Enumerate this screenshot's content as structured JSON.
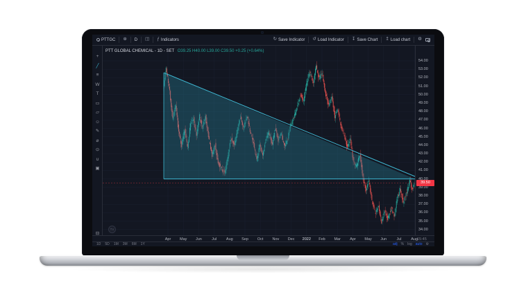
{
  "laptop": {
    "parts": [
      "screen-bezel",
      "webcam",
      "base-deck",
      "lid-notch"
    ]
  },
  "app": {
    "topbar": {
      "symbol": "PTTGC",
      "interval": "D",
      "indicators_label": "Indicators",
      "indicators_fx": "ƒ",
      "compare_glyph": "⊕",
      "chart_type_glyph": "◫",
      "save_indicator": "Save Indicator",
      "load_indicator": "Load Indicator",
      "save_chart": "Save Chart",
      "load_chart": "Load chart",
      "save_indicator_glyph": "↻",
      "load_indicator_glyph": "↺",
      "save_chart_glyph": "↧",
      "load_chart_glyph": "↥",
      "settings_glyph": "⚙"
    },
    "left_toolbar": [
      {
        "name": "cursor-crosshair-tool",
        "glyph": "+",
        "active": false
      },
      {
        "name": "trend-line-tool",
        "glyph": "╱",
        "active": true
      },
      {
        "name": "fib-retracement-tool",
        "glyph": "≡",
        "active": false
      },
      {
        "name": "xabcd-pattern-tool",
        "glyph": "W",
        "active": false
      },
      {
        "name": "text-tool",
        "glyph": "T",
        "active": false
      },
      {
        "name": "rectangle-tool",
        "glyph": "▭",
        "active": false
      },
      {
        "name": "callout-tool",
        "glyph": "▱",
        "active": false
      },
      {
        "name": "icons-tool",
        "glyph": "☺",
        "active": false
      },
      {
        "name": "brush-tool",
        "glyph": "✎",
        "active": false
      },
      {
        "name": "measure-tool",
        "glyph": "⌀",
        "active": false
      },
      {
        "name": "zoom-in-tool",
        "glyph": "⊙",
        "active": false
      },
      {
        "name": "magnet-tool",
        "glyph": "∪",
        "active": false
      },
      {
        "name": "lock-all-tool",
        "glyph": "▣",
        "active": false
      }
    ],
    "remove_drawings": {
      "name": "remove-drawings-button",
      "glyph": "⊟"
    },
    "legend": {
      "title": "PTT GLOBAL CHEMICAL - 1D - SET",
      "ohlc": "O39.25  H40.00  L39.00  C39.50  +0.25 (+0.64%)"
    },
    "price_axis": {
      "ticks": [
        "54.00",
        "53.00",
        "52.00",
        "51.00",
        "50.00",
        "49.00",
        "48.00",
        "47.00",
        "46.00",
        "45.00",
        "44.00",
        "43.00",
        "42.00",
        "41.00",
        "40.00",
        "39.00",
        "38.00",
        "37.00",
        "36.00",
        "35.00",
        "34.00"
      ],
      "last_price_tag": "39.50"
    },
    "time_axis": {
      "labels": [
        "Apr",
        "May",
        "Jun",
        "Jul",
        "Aug",
        "Sep",
        "Oct",
        "Nov",
        "Dec",
        "2022",
        "Feb",
        "Mar",
        "Apr",
        "May",
        "Jun",
        "Jul",
        "Aug"
      ],
      "corner_time": "15:45"
    },
    "bottom_bar": {
      "ranges": [
        "1D",
        "5D",
        "1M",
        "3M",
        "6M",
        "1Y"
      ],
      "scale_buttons": [
        {
          "label": "adj",
          "active": true
        },
        {
          "label": "%",
          "active": false
        },
        {
          "label": "log",
          "active": false
        },
        {
          "label": "auto",
          "active": true
        }
      ],
      "settings_glyph": "⚙"
    },
    "watermark": "TV"
  },
  "chart_data": {
    "type": "candlestick",
    "title": "PTT GLOBAL CHEMICAL - 1D - SET",
    "symbol": "PTTGC",
    "exchange": "SET",
    "interval": "1D",
    "visible_range": {
      "from": "Apr 2021",
      "to": "Aug 2022"
    },
    "x_labels": [
      "Apr",
      "May",
      "Jun",
      "Jul",
      "Aug",
      "Sep",
      "Oct",
      "Nov",
      "Dec",
      "2022",
      "Feb",
      "Mar",
      "Apr",
      "May",
      "Jun",
      "Jul",
      "Aug"
    ],
    "y_ticks": [
      54,
      53,
      52,
      51,
      50,
      49,
      48,
      47,
      46,
      45,
      44,
      43,
      42,
      41,
      40,
      39,
      38,
      37,
      36,
      35,
      34
    ],
    "y_range": [
      33.5,
      55.0
    ],
    "last_bar": {
      "open": 39.25,
      "high": 40.0,
      "low": 39.0,
      "close": 39.5,
      "change": "+0.25 (+0.64%)"
    },
    "last_price": 39.5,
    "num_bars": 339,
    "price_waypoints": [
      [
        0,
        51.0
      ],
      [
        3,
        53.2
      ],
      [
        8,
        50.3
      ],
      [
        12,
        47.2
      ],
      [
        16,
        48.6
      ],
      [
        20,
        45.6
      ],
      [
        24,
        44.0
      ],
      [
        28,
        45.8
      ],
      [
        32,
        43.8
      ],
      [
        36,
        46.6
      ],
      [
        40,
        47.2
      ],
      [
        44,
        45.1
      ],
      [
        48,
        47.5
      ],
      [
        52,
        46.0
      ],
      [
        56,
        47.4
      ],
      [
        60,
        44.9
      ],
      [
        65,
        42.8
      ],
      [
        69,
        44.1
      ],
      [
        73,
        41.9
      ],
      [
        78,
        41.2
      ],
      [
        82,
        40.7
      ],
      [
        86,
        42.6
      ],
      [
        90,
        44.8
      ],
      [
        95,
        44.1
      ],
      [
        99,
        45.7
      ],
      [
        103,
        47.3
      ],
      [
        108,
        46.1
      ],
      [
        112,
        47.5
      ],
      [
        116,
        45.7
      ],
      [
        120,
        44.5
      ],
      [
        125,
        42.3
      ],
      [
        129,
        43.9
      ],
      [
        133,
        42.7
      ],
      [
        137,
        44.5
      ],
      [
        141,
        45.6
      ],
      [
        146,
        44.2
      ],
      [
        150,
        46.0
      ],
      [
        154,
        44.6
      ],
      [
        158,
        45.3
      ],
      [
        163,
        43.7
      ],
      [
        167,
        44.9
      ],
      [
        171,
        46.4
      ],
      [
        176,
        47.5
      ],
      [
        180,
        48.7
      ],
      [
        184,
        50.1
      ],
      [
        188,
        49.2
      ],
      [
        192,
        51.2
      ],
      [
        196,
        52.7
      ],
      [
        201,
        51.5
      ],
      [
        205,
        53.4
      ],
      [
        209,
        51.9
      ],
      [
        213,
        52.5
      ],
      [
        217,
        50.3
      ],
      [
        222,
        48.7
      ],
      [
        226,
        49.9
      ],
      [
        230,
        47.3
      ],
      [
        234,
        48.3
      ],
      [
        238,
        46.3
      ],
      [
        243,
        45.1
      ],
      [
        247,
        43.7
      ],
      [
        251,
        44.7
      ],
      [
        255,
        42.1
      ],
      [
        259,
        41.5
      ],
      [
        264,
        42.9
      ],
      [
        268,
        40.1
      ],
      [
        272,
        38.7
      ],
      [
        276,
        39.7
      ],
      [
        280,
        37.5
      ],
      [
        285,
        35.9
      ],
      [
        289,
        36.9
      ],
      [
        293,
        34.9
      ],
      [
        297,
        36.3
      ],
      [
        301,
        35.3
      ],
      [
        306,
        36.5
      ],
      [
        310,
        35.6
      ],
      [
        314,
        37.7
      ],
      [
        318,
        38.7
      ],
      [
        322,
        37.3
      ],
      [
        327,
        38.5
      ],
      [
        331,
        39.9
      ],
      [
        334,
        38.8
      ],
      [
        338,
        39.5
      ]
    ],
    "drawing": {
      "type": "descending-triangle",
      "stroke_color": "#3fb9d4",
      "fill_color": "rgba(47,160,186,0.28)",
      "base_price": 40.0,
      "top_start": {
        "bar": 0,
        "price": 52.6
      },
      "apex": {
        "bar": 338,
        "price": 40.3
      }
    },
    "colors": {
      "background": "#131722",
      "grid": "#1b2030",
      "up_candle": "#26a69a",
      "down_candle": "#ef5350",
      "last_price_line": "#f23645",
      "accent_blue": "#2962ff"
    },
    "legend_position": "top-left",
    "grid": true
  }
}
